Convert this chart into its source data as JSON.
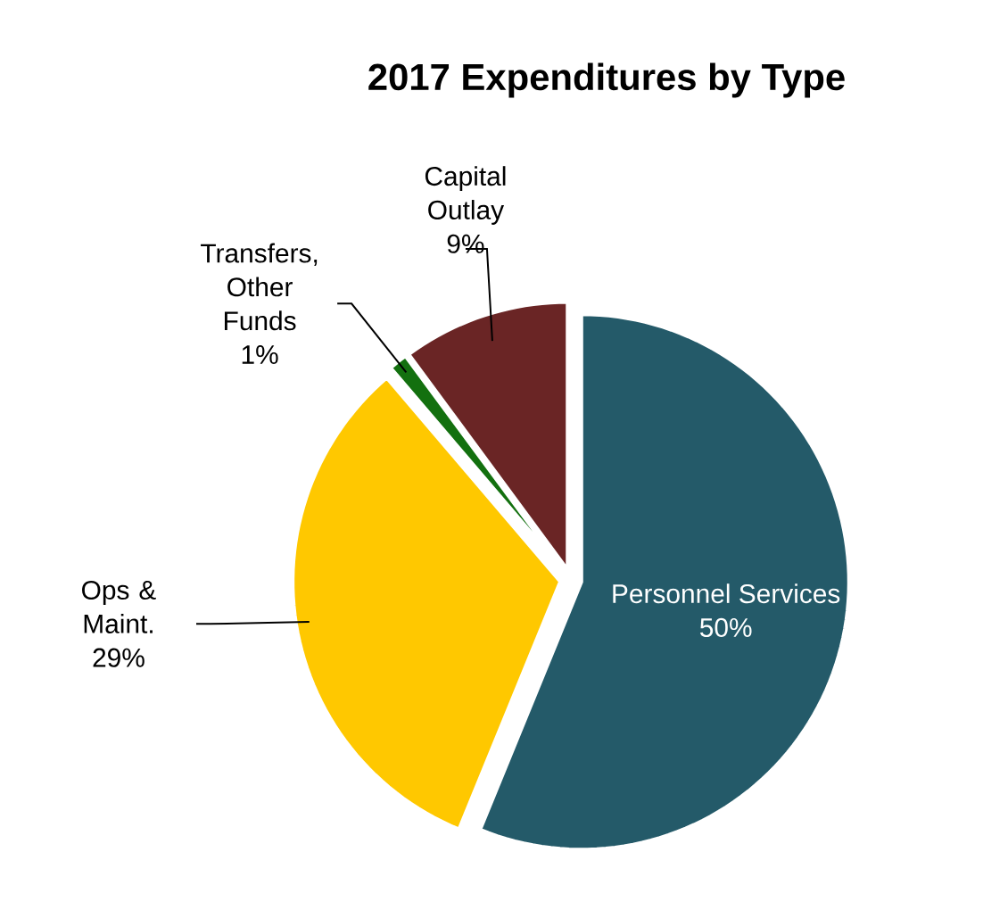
{
  "chart_data": {
    "type": "pie",
    "title": "2017 Expenditures by Type",
    "categories": [
      "Personnel Services",
      "Ops & Maint.",
      "Transfers, Other Funds",
      "Capital Outlay"
    ],
    "values": [
      50,
      29,
      1,
      9
    ],
    "value_labels": [
      "50%",
      "29%",
      "1%",
      "9%"
    ],
    "colors": [
      "#245a69",
      "#ffc800",
      "#13700f",
      "#6a2525"
    ]
  }
}
